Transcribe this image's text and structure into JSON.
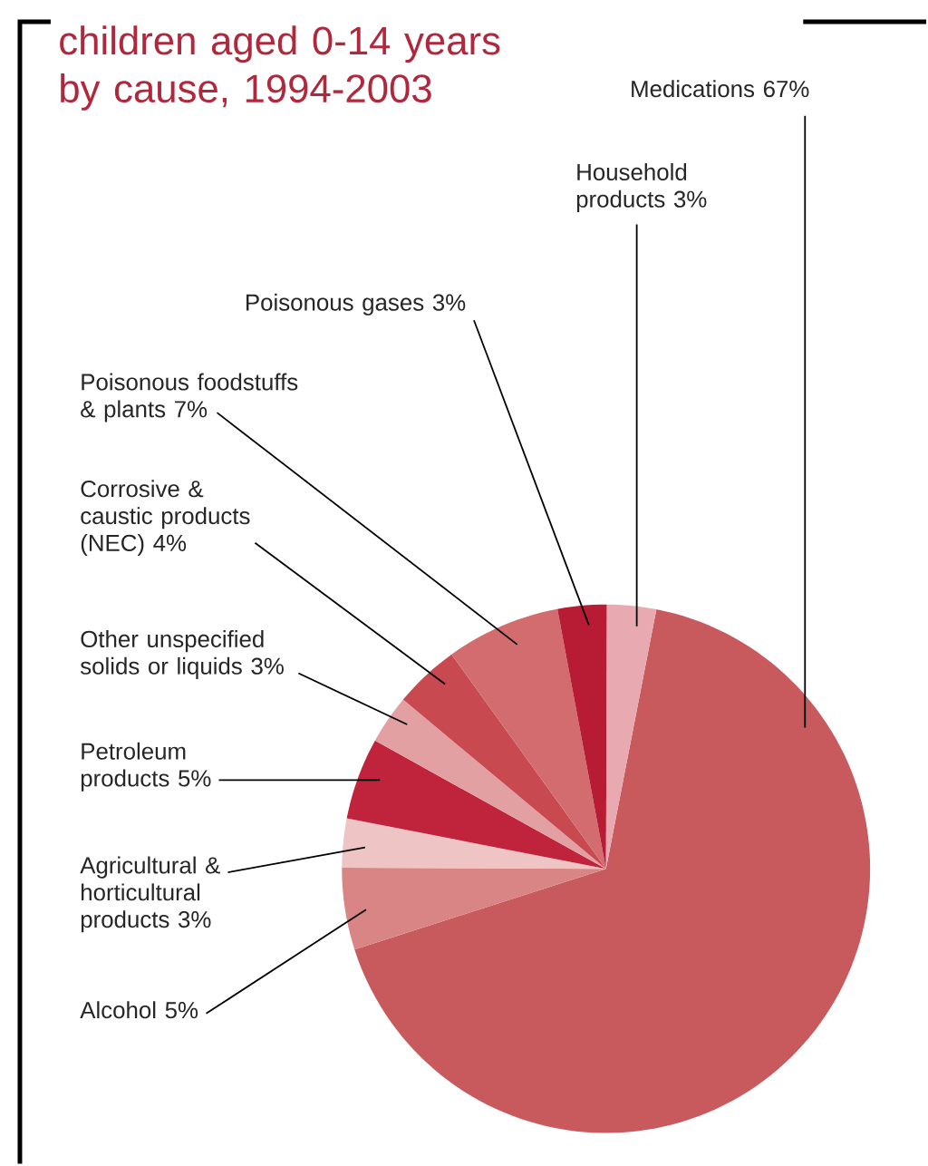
{
  "chart_data": {
    "type": "pie",
    "title": "children aged 0-14 years by cause, 1994-2003",
    "categories": [
      "Medications",
      "Alcohol",
      "Agricultural & horticultural products",
      "Petroleum products",
      "Other unspecified solids or liquids",
      "Corrosive & caustic products (NEC)",
      "Poisonous foodstuffs & plants",
      "Poisonous gases",
      "Household products"
    ],
    "values": [
      67,
      5,
      3,
      5,
      3,
      4,
      7,
      3,
      3
    ],
    "value_labels": [
      "67%",
      "5%",
      "3%",
      "5%",
      "3%",
      "4%",
      "7%",
      "3%",
      "3%"
    ],
    "colors": [
      "#c85a5e",
      "#d98585",
      "#efc4c4",
      "#c0243c",
      "#e3a0a2",
      "#c84a50",
      "#d26c6e",
      "#b81c34",
      "#e8aab0"
    ]
  }
}
